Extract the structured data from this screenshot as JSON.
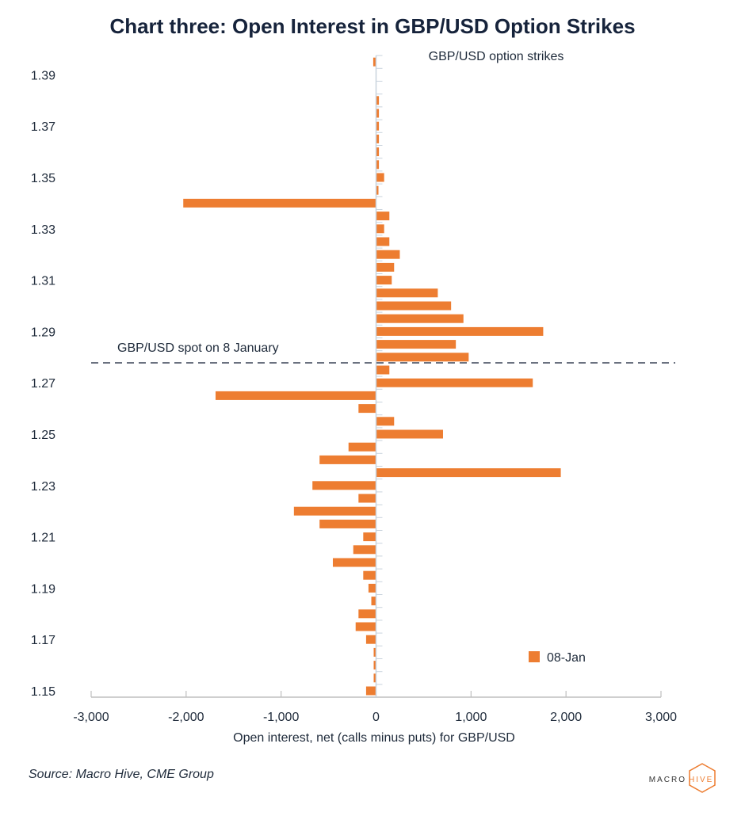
{
  "chart_data": {
    "type": "bar",
    "orientation": "horizontal",
    "title": "Chart three: Open Interest in GBP/USD Option Strikes",
    "ylabel": "GBP/USD option strikes",
    "xlabel": "Open interest, net (calls minus puts) for GBP/USD",
    "xlim": [
      -3000,
      3000
    ],
    "x_ticks": [
      "-3,000",
      "-2,000",
      "-1,000",
      "0",
      "1,000",
      "2,000",
      "3,000"
    ],
    "y_ticks": [
      "1.39",
      "1.37",
      "1.35",
      "1.33",
      "1.31",
      "1.29",
      "1.27",
      "1.25",
      "1.23",
      "1.21",
      "1.19",
      "1.17",
      "1.15"
    ],
    "categories": [
      1.395,
      1.39,
      1.385,
      1.38,
      1.375,
      1.37,
      1.365,
      1.36,
      1.355,
      1.35,
      1.345,
      1.34,
      1.335,
      1.33,
      1.325,
      1.32,
      1.315,
      1.31,
      1.305,
      1.3,
      1.295,
      1.29,
      1.285,
      1.28,
      1.275,
      1.27,
      1.265,
      1.26,
      1.255,
      1.25,
      1.245,
      1.24,
      1.235,
      1.23,
      1.225,
      1.22,
      1.215,
      1.21,
      1.205,
      1.2,
      1.195,
      1.19,
      1.185,
      1.18,
      1.175,
      1.17,
      1.165,
      1.16,
      1.155,
      1.15
    ],
    "series": [
      {
        "name": "08-Jan",
        "color": "#ED7D31",
        "values": [
          -30,
          0,
          0,
          30,
          30,
          30,
          30,
          30,
          30,
          85,
          25,
          -2030,
          140,
          85,
          140,
          250,
          190,
          165,
          650,
          790,
          920,
          1760,
          840,
          975,
          140,
          1650,
          -1690,
          -185,
          190,
          705,
          -290,
          -595,
          1945,
          -670,
          -185,
          -865,
          -595,
          -135,
          -240,
          -455,
          -135,
          -80,
          -50,
          -185,
          -215,
          -105,
          -25,
          -25,
          -25,
          -105
        ]
      }
    ],
    "annotation": "GBP/USD spot on 8 January",
    "legend": "bottom-right",
    "grid": false
  },
  "source": "Source: Macro Hive, CME Group",
  "logo": {
    "text_dark": "MACRO",
    "text_accent": "HIVE",
    "accent_color": "#ED7D31"
  }
}
